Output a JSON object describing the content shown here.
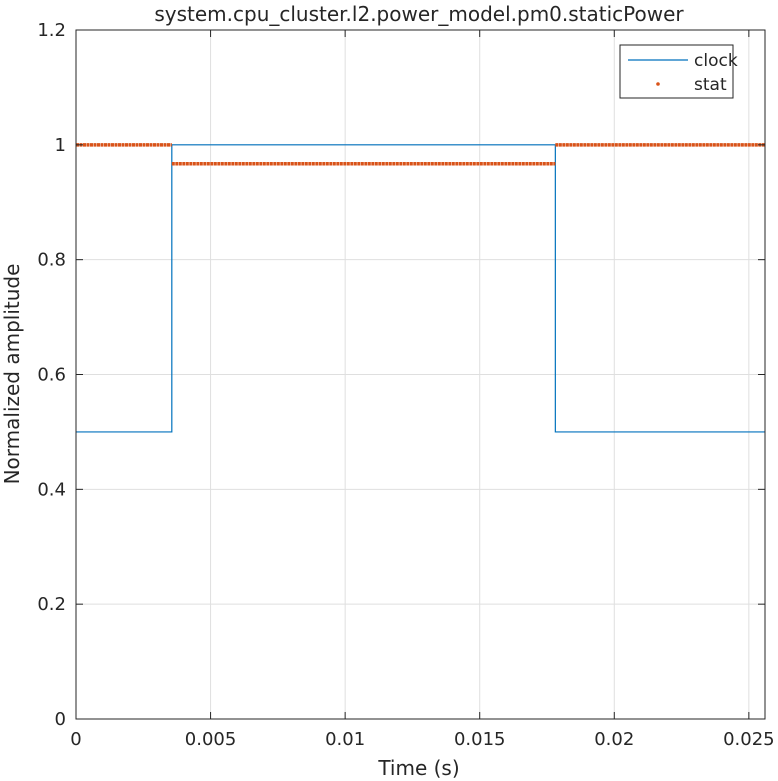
{
  "chart_data": {
    "type": "line",
    "title": "system.cpu_cluster.l2.power_model.pm0.staticPower",
    "xlabel": "Time (s)",
    "ylabel": "Normalized amplitude",
    "xlim": [
      0,
      0.0256
    ],
    "ylim": [
      0,
      1.2
    ],
    "x_ticks": [
      0,
      0.005,
      0.01,
      0.015,
      0.02,
      0.025
    ],
    "x_tick_labels": [
      "0",
      "0.005",
      "0.01",
      "0.015",
      "0.02",
      "0.025"
    ],
    "y_ticks": [
      0,
      0.2,
      0.4,
      0.6,
      0.8,
      1,
      1.2
    ],
    "y_tick_labels": [
      "0",
      "0.2",
      "0.4",
      "0.6",
      "0.8",
      "1",
      "1.2"
    ],
    "grid": true,
    "legend_location": "top-right",
    "series": [
      {
        "name": "clock",
        "style": "line",
        "color": "#0072BD",
        "x": [
          0,
          0.00356,
          0.00356,
          0.01781,
          0.01781,
          0.0256
        ],
        "y": [
          0.5,
          0.5,
          1.0,
          1.0,
          0.5,
          0.5
        ]
      },
      {
        "name": "stat",
        "style": "dots",
        "color": "#D95319",
        "segments": [
          {
            "x_start": 0,
            "x_end": 0.00356,
            "y": 1.0
          },
          {
            "x_start": 0.00356,
            "x_end": 0.01781,
            "y": 0.967
          },
          {
            "x_start": 0.01781,
            "x_end": 0.0256,
            "y": 1.0
          }
        ]
      }
    ]
  }
}
